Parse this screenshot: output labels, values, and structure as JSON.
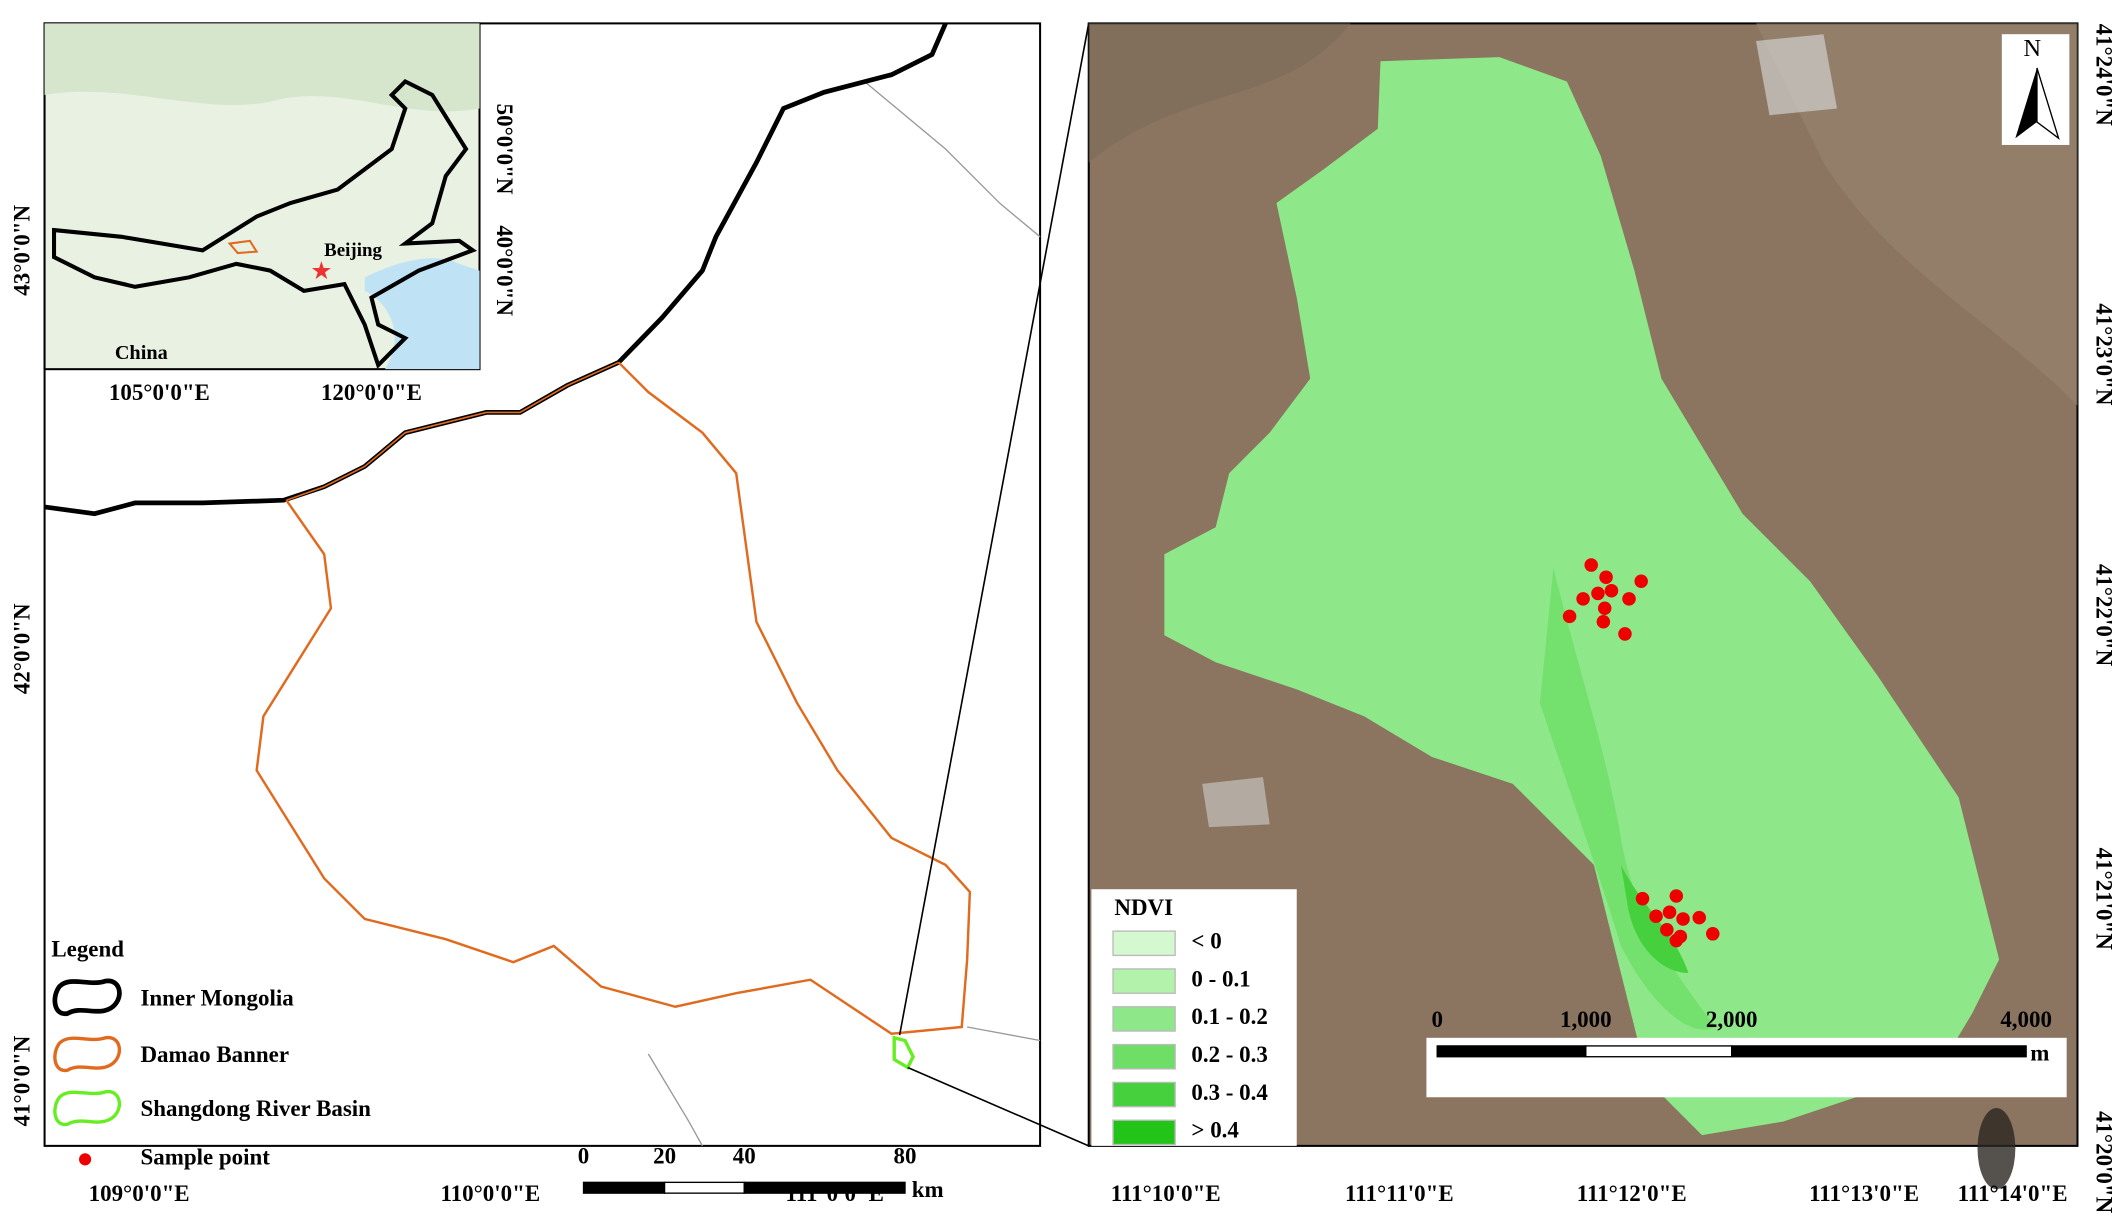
{
  "left_map": {
    "lat_labels": [
      "43°0'0\"N",
      "42°0'0\"N",
      "41°0'0\"N"
    ],
    "lon_labels": [
      "109°0'0\"E",
      "110°0'0\"E",
      "111°0'0\"E"
    ],
    "inset": {
      "city": "Beijing",
      "country": "China",
      "lon_labels": [
        "105°0'0\"E",
        "120°0'0\"E"
      ],
      "lat_labels": [
        "50°0'0\"N",
        "40°0'0\"N"
      ]
    },
    "legend": {
      "title": "Legend",
      "items": [
        "Inner Mongolia",
        "Damao Banner",
        "Shangdong River Basin",
        "Sample point"
      ]
    },
    "scale_bar": {
      "ticks": [
        "0",
        "20",
        "40",
        "80"
      ],
      "unit": "km"
    }
  },
  "right_map": {
    "north": "N",
    "lon_labels": [
      "111°10'0\"E",
      "111°11'0\"E",
      "111°12'0\"E",
      "111°13'0\"E",
      "111°14'0\"E"
    ],
    "lat_labels": [
      "41°24'0\"N",
      "41°23'0\"N",
      "41°22'0\"N",
      "41°21'0\"N",
      "41°20'0\"N"
    ],
    "legend": {
      "title": "NDVI",
      "items": [
        "< 0",
        "0 - 0.1",
        "0.1 - 0.2",
        "0.2 - 0.3",
        "0.3 - 0.4",
        "> 0.4"
      ]
    },
    "scale_bar": {
      "ticks": [
        "0",
        "1,000",
        "2,000",
        "4,000"
      ],
      "unit": "m"
    }
  }
}
